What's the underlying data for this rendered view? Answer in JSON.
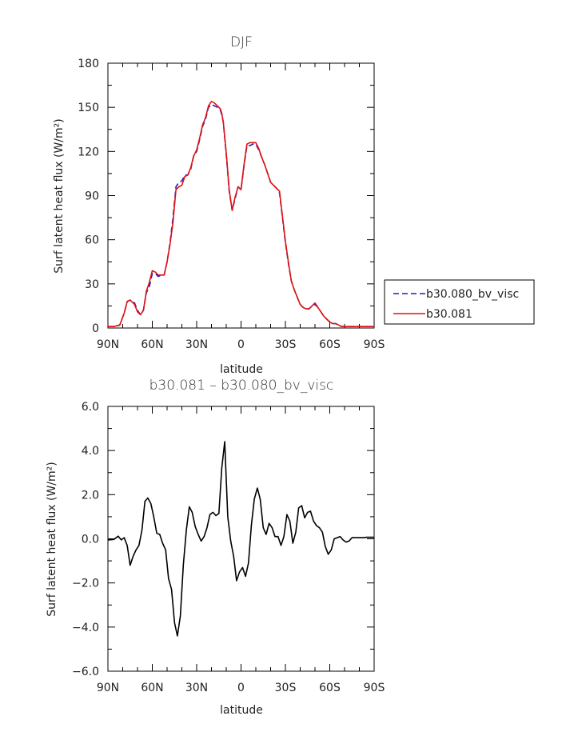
{
  "chart_data": [
    {
      "type": "line",
      "title": "DJF",
      "xlabel": "latitude",
      "ylabel": "Surf latent heat flux (W/m²)",
      "xlim": [
        -90,
        90
      ],
      "ylim": [
        0,
        180
      ],
      "xticks": [
        -90,
        -60,
        -30,
        0,
        30,
        60,
        90
      ],
      "xtick_labels": [
        "90N",
        "60N",
        "30N",
        "0",
        "30S",
        "60S",
        "90S"
      ],
      "yticks": [
        0,
        30,
        60,
        90,
        120,
        150,
        180
      ],
      "ytick_labels": [
        "0",
        "30",
        "60",
        "90",
        "120",
        "150",
        "180"
      ],
      "legend_position": "right",
      "series": [
        {
          "name": "b30.080_bv_visc",
          "color": "#1f1fbf",
          "dash": "dashed",
          "x": [
            -90,
            -86,
            -82,
            -79,
            -77,
            -75,
            -72,
            -70,
            -68,
            -66,
            -64,
            -62,
            -60,
            -58,
            -56,
            -54,
            -52,
            -50,
            -48,
            -46,
            -44,
            -42,
            -40,
            -38,
            -36,
            -34,
            -32,
            -30,
            -28,
            -26,
            -24,
            -22,
            -20,
            -18,
            -16,
            -14,
            -13,
            -12,
            -10,
            -8,
            -6,
            -4,
            -2,
            0,
            2,
            4,
            6,
            8,
            10,
            12,
            14,
            16,
            18,
            20,
            22,
            24,
            26,
            28,
            30,
            32,
            34,
            36,
            38,
            40,
            42,
            44,
            46,
            48,
            50,
            52,
            54,
            56,
            58,
            60,
            62,
            64,
            66,
            68,
            70,
            72,
            74,
            76,
            78,
            80,
            82,
            84,
            86,
            88,
            90
          ],
          "y": [
            1,
            1,
            2,
            10,
            18,
            19,
            17,
            12,
            9,
            12,
            24,
            28,
            37,
            37,
            35,
            36,
            36,
            45,
            58,
            75,
            96,
            99,
            100,
            104,
            104,
            108,
            117,
            120,
            128,
            137,
            142,
            150,
            152,
            151,
            150,
            148,
            145,
            140,
            118,
            93,
            80,
            88,
            96,
            94,
            110,
            124,
            124,
            125,
            125,
            121,
            116,
            111,
            105,
            99,
            97,
            95,
            92,
            75,
            58,
            44,
            32,
            26,
            21,
            16,
            14,
            13,
            13,
            15,
            16,
            14,
            11,
            8,
            6,
            4,
            3,
            3,
            2,
            1,
            1,
            1,
            1,
            1,
            1,
            1,
            1,
            1,
            1,
            1,
            1
          ]
        },
        {
          "name": "b30.081",
          "color": "#e01010",
          "dash": "solid",
          "x": [
            -90,
            -86,
            -82,
            -79,
            -77,
            -75,
            -72,
            -70,
            -68,
            -66,
            -64,
            -62,
            -60,
            -58,
            -56,
            -54,
            -52,
            -50,
            -48,
            -46,
            -44,
            -42,
            -40,
            -38,
            -36,
            -34,
            -32,
            -30,
            -28,
            -26,
            -24,
            -22,
            -20,
            -18,
            -16,
            -14,
            -13,
            -12,
            -10,
            -8,
            -6,
            -4,
            -2,
            0,
            2,
            4,
            6,
            8,
            10,
            12,
            14,
            16,
            18,
            20,
            22,
            24,
            26,
            28,
            30,
            32,
            34,
            36,
            38,
            40,
            42,
            44,
            46,
            48,
            50,
            52,
            54,
            56,
            58,
            60,
            62,
            64,
            66,
            68,
            70,
            72,
            74,
            76,
            78,
            80,
            82,
            84,
            86,
            88,
            90
          ],
          "y": [
            1,
            1,
            2,
            10,
            18,
            19,
            16,
            11,
            9,
            12,
            25,
            31,
            39,
            38,
            36,
            36,
            36,
            45,
            57,
            72,
            94,
            96,
            97,
            103,
            104,
            109,
            117,
            121,
            129,
            138,
            143,
            151,
            154,
            153,
            151,
            149,
            146,
            140,
            119,
            94,
            80,
            89,
            96,
            94,
            111,
            125,
            126,
            126,
            126,
            122,
            116,
            111,
            105,
            99,
            97,
            95,
            93,
            76,
            59,
            45,
            32,
            26,
            21,
            16,
            14,
            13,
            13,
            15,
            17,
            14,
            11,
            8,
            6,
            4,
            3,
            3,
            2,
            1,
            1,
            1,
            1,
            1,
            1,
            1,
            1,
            1,
            1,
            1,
            1
          ]
        }
      ]
    },
    {
      "type": "line",
      "title": "b30.081 – b30.080_bv_visc",
      "xlabel": "latitude",
      "ylabel": "Surf latent heat flux (W/m²)",
      "xlim": [
        -90,
        90
      ],
      "ylim": [
        -6,
        6
      ],
      "xticks": [
        -90,
        -60,
        -30,
        0,
        30,
        60,
        90
      ],
      "xtick_labels": [
        "90N",
        "60N",
        "30N",
        "0",
        "30S",
        "60S",
        "90S"
      ],
      "yticks": [
        -6,
        -4,
        -2,
        0,
        2,
        4,
        6
      ],
      "ytick_labels": [
        "−6.0",
        "−4.0",
        "−2.0",
        "0.0",
        "2.0",
        "4.0",
        "6.0"
      ],
      "series": [
        {
          "color": "#000000",
          "dash": "solid",
          "x": [
            -90,
            -86,
            -83,
            -81,
            -79,
            -77,
            -75,
            -73,
            -71,
            -69,
            -67,
            -65,
            -63,
            -61,
            -59,
            -57,
            -55,
            -53,
            -51,
            -49,
            -47,
            -45,
            -43,
            -41,
            -39,
            -37,
            -35,
            -33,
            -31,
            -29,
            -27,
            -25,
            -23,
            -21,
            -19,
            -17,
            -15,
            -13,
            -11,
            -9,
            -7,
            -5,
            -3,
            -1,
            1,
            3,
            5,
            7,
            9,
            11,
            13,
            15,
            17,
            19,
            21,
            23,
            25,
            27,
            29,
            31,
            33,
            35,
            37,
            39,
            41,
            43,
            45,
            47,
            49,
            51,
            53,
            55,
            57,
            59,
            61,
            63,
            65,
            67,
            69,
            71,
            73,
            75,
            77,
            79,
            81,
            83,
            85,
            87,
            89,
            90
          ],
          "y": [
            -0.05,
            -0.03,
            0.12,
            -0.05,
            0.05,
            -0.3,
            -1.2,
            -0.8,
            -0.5,
            -0.3,
            0.4,
            1.7,
            1.85,
            1.6,
            1.0,
            0.25,
            0.2,
            -0.2,
            -0.5,
            -1.8,
            -2.3,
            -3.8,
            -4.4,
            -3.5,
            -1.2,
            0.4,
            1.45,
            1.2,
            0.55,
            0.2,
            -0.1,
            0.1,
            0.5,
            1.1,
            1.2,
            1.05,
            1.15,
            3.2,
            4.4,
            1.0,
            -0.1,
            -0.8,
            -1.9,
            -1.5,
            -1.3,
            -1.7,
            -1.1,
            0.6,
            1.8,
            2.3,
            1.8,
            0.5,
            0.2,
            0.7,
            0.5,
            0.1,
            0.1,
            -0.3,
            0.1,
            1.1,
            0.8,
            -0.2,
            0.3,
            1.4,
            1.5,
            0.95,
            1.2,
            1.25,
            0.8,
            0.6,
            0.5,
            0.3,
            -0.35,
            -0.7,
            -0.5,
            0.0,
            0.05,
            0.1,
            -0.05,
            -0.15,
            -0.1,
            0.05,
            0.05,
            0.05,
            0.05,
            0.05,
            0.07,
            0.07,
            0.07,
            0.07
          ]
        }
      ]
    }
  ]
}
